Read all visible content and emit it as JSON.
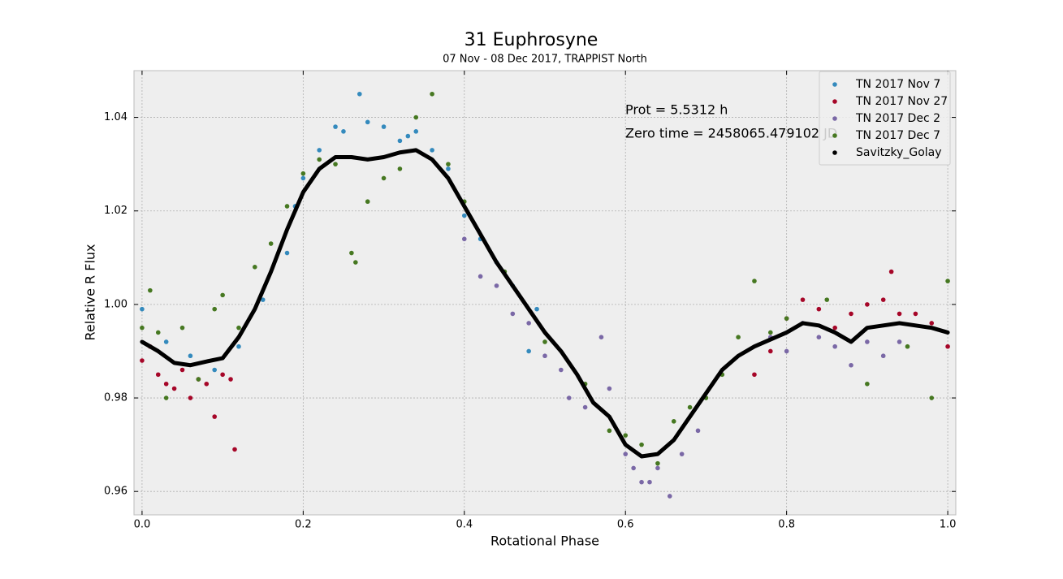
{
  "chart_data": {
    "type": "scatter",
    "title": "31 Euphrosyne",
    "subtitle": "07 Nov - 08 Dec 2017, TRAPPIST North",
    "x_label": "Rotational Phase",
    "y_label": "Relative R Flux",
    "annotations": [
      "Prot = 5.5312 h",
      "Zero time = 2458065.479102 JD"
    ],
    "xlim": [
      -0.01,
      1.01
    ],
    "ylim": [
      0.955,
      1.05
    ],
    "xticks": [
      {
        "value": 0,
        "label": "0.0"
      },
      0.2,
      0.4,
      0.6,
      0.8,
      {
        "value": 1,
        "label": "1.0"
      }
    ],
    "yticks": [
      0.96,
      0.98,
      {
        "value": 1,
        "label": "1.00"
      },
      1.02,
      1.04
    ],
    "grid": true,
    "legend": "upper right",
    "series": [
      {
        "name": "TN 2017 Nov 7",
        "color": "#348abd",
        "x": [
          0.0,
          0.03,
          0.06,
          0.09,
          0.12,
          0.15,
          0.18,
          0.2,
          0.22,
          0.24,
          0.25,
          0.27,
          0.28,
          0.3,
          0.32,
          0.34,
          0.36,
          0.38,
          0.4,
          0.42,
          0.44,
          0.46,
          0.48,
          0.49,
          0.19,
          0.33
        ],
        "values": [
          0.999,
          0.992,
          0.989,
          0.986,
          0.991,
          1.001,
          1.011,
          1.027,
          1.033,
          1.038,
          1.037,
          1.045,
          1.039,
          1.038,
          1.035,
          1.037,
          1.033,
          1.029,
          1.019,
          1.014,
          1.009,
          1.004,
          0.99,
          0.999,
          1.021,
          1.036
        ]
      },
      {
        "name": "TN 2017 Nov 27",
        "color": "#a60628",
        "x": [
          0.0,
          0.01,
          0.02,
          0.03,
          0.04,
          0.05,
          0.06,
          0.07,
          0.08,
          0.09,
          0.1,
          0.11,
          0.115,
          0.76,
          0.78,
          0.8,
          0.82,
          0.84,
          0.86,
          0.88,
          0.9,
          0.92,
          0.93,
          0.94,
          0.96,
          0.98,
          1.0
        ],
        "values": [
          0.988,
          0.991,
          0.985,
          0.983,
          0.982,
          0.986,
          0.98,
          0.984,
          0.983,
          0.976,
          0.985,
          0.984,
          0.969,
          0.985,
          0.99,
          0.997,
          1.001,
          0.999,
          0.995,
          0.998,
          1.0,
          1.001,
          1.007,
          0.998,
          0.998,
          0.996,
          0.991
        ]
      },
      {
        "name": "TN 2017 Dec 2",
        "color": "#7a68a6",
        "x": [
          0.4,
          0.42,
          0.44,
          0.46,
          0.48,
          0.5,
          0.52,
          0.53,
          0.55,
          0.57,
          0.58,
          0.6,
          0.61,
          0.62,
          0.63,
          0.64,
          0.655,
          0.67,
          0.69,
          0.78,
          0.8,
          0.82,
          0.84,
          0.86,
          0.88,
          0.9,
          0.92,
          0.94
        ],
        "values": [
          1.014,
          1.006,
          1.004,
          0.998,
          0.996,
          0.989,
          0.986,
          0.98,
          0.978,
          0.993,
          0.982,
          0.968,
          0.965,
          0.962,
          0.962,
          0.965,
          0.959,
          0.968,
          0.973,
          0.993,
          0.99,
          0.996,
          0.993,
          0.991,
          0.987,
          0.992,
          0.989,
          0.992
        ]
      },
      {
        "name": "TN 2017 Dec 7",
        "color": "#467821",
        "x": [
          0.0,
          0.01,
          0.02,
          0.03,
          0.05,
          0.07,
          0.09,
          0.1,
          0.12,
          0.14,
          0.16,
          0.18,
          0.2,
          0.22,
          0.24,
          0.26,
          0.265,
          0.28,
          0.3,
          0.32,
          0.34,
          0.36,
          0.38,
          0.4,
          0.45,
          0.5,
          0.55,
          0.58,
          0.6,
          0.62,
          0.64,
          0.66,
          0.68,
          0.7,
          0.72,
          0.74,
          0.76,
          0.78,
          0.8,
          0.85,
          0.9,
          0.95,
          0.98,
          1.0
        ],
        "values": [
          0.995,
          1.003,
          0.994,
          0.98,
          0.995,
          0.984,
          0.999,
          1.002,
          0.995,
          1.008,
          1.013,
          1.021,
          1.028,
          1.031,
          1.03,
          1.011,
          1.009,
          1.022,
          1.027,
          1.029,
          1.04,
          1.045,
          1.03,
          1.022,
          1.007,
          0.992,
          0.983,
          0.973,
          0.972,
          0.97,
          0.966,
          0.975,
          0.978,
          0.98,
          0.985,
          0.993,
          1.005,
          0.994,
          0.997,
          1.001,
          0.983,
          0.991,
          0.98,
          1.005
        ]
      },
      {
        "name": "Savitzky_Golay",
        "color": "#000000",
        "line": true,
        "x": [
          0,
          0.02,
          0.04,
          0.06,
          0.08,
          0.1,
          0.12,
          0.14,
          0.16,
          0.18,
          0.2,
          0.22,
          0.24,
          0.26,
          0.28,
          0.3,
          0.32,
          0.34,
          0.36,
          0.38,
          0.4,
          0.42,
          0.44,
          0.46,
          0.48,
          0.5,
          0.52,
          0.54,
          0.56,
          0.58,
          0.6,
          0.62,
          0.64,
          0.66,
          0.68,
          0.7,
          0.72,
          0.74,
          0.76,
          0.78,
          0.8,
          0.82,
          0.84,
          0.86,
          0.88,
          0.9,
          0.92,
          0.94,
          0.96,
          0.98,
          1.0
        ],
        "values": [
          0.992,
          0.99,
          0.9875,
          0.987,
          0.9878,
          0.9885,
          0.993,
          0.999,
          1.007,
          1.016,
          1.024,
          1.029,
          1.0315,
          1.0315,
          1.031,
          1.0315,
          1.0325,
          1.033,
          1.031,
          1.027,
          1.021,
          1.015,
          1.009,
          1.004,
          0.999,
          0.994,
          0.99,
          0.985,
          0.979,
          0.976,
          0.97,
          0.9675,
          0.968,
          0.971,
          0.976,
          0.981,
          0.986,
          0.989,
          0.991,
          0.9925,
          0.994,
          0.996,
          0.9955,
          0.994,
          0.992,
          0.995,
          0.9955,
          0.996,
          0.9955,
          0.995,
          0.994
        ]
      }
    ]
  }
}
